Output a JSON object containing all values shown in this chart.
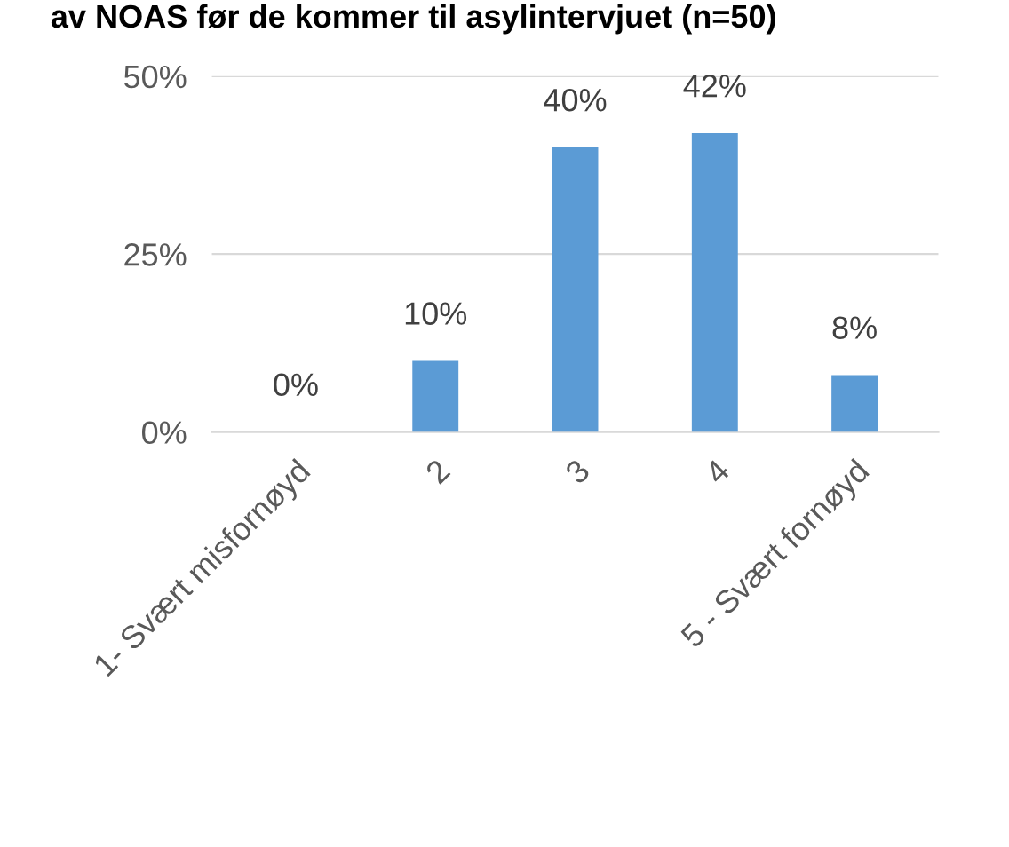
{
  "chart_data": {
    "type": "bar",
    "title": "av NOAS før de kommer til asylintervjuet (n=50)",
    "categories": [
      "1- Svært misfornøyd",
      "2",
      "3",
      "4",
      "5 - Svært fornøyd"
    ],
    "values": [
      0,
      10,
      40,
      42,
      8
    ],
    "color": "#5b9bd5",
    "value_labels": [
      "0%",
      "10%",
      "40%",
      "42%",
      "8%"
    ],
    "ylim": [
      0,
      50
    ],
    "yticks": [
      {
        "value": 0,
        "label": "0%"
      },
      {
        "value": 25,
        "label": "25%"
      },
      {
        "value": 50,
        "label": "50%"
      }
    ],
    "grid": "y"
  }
}
